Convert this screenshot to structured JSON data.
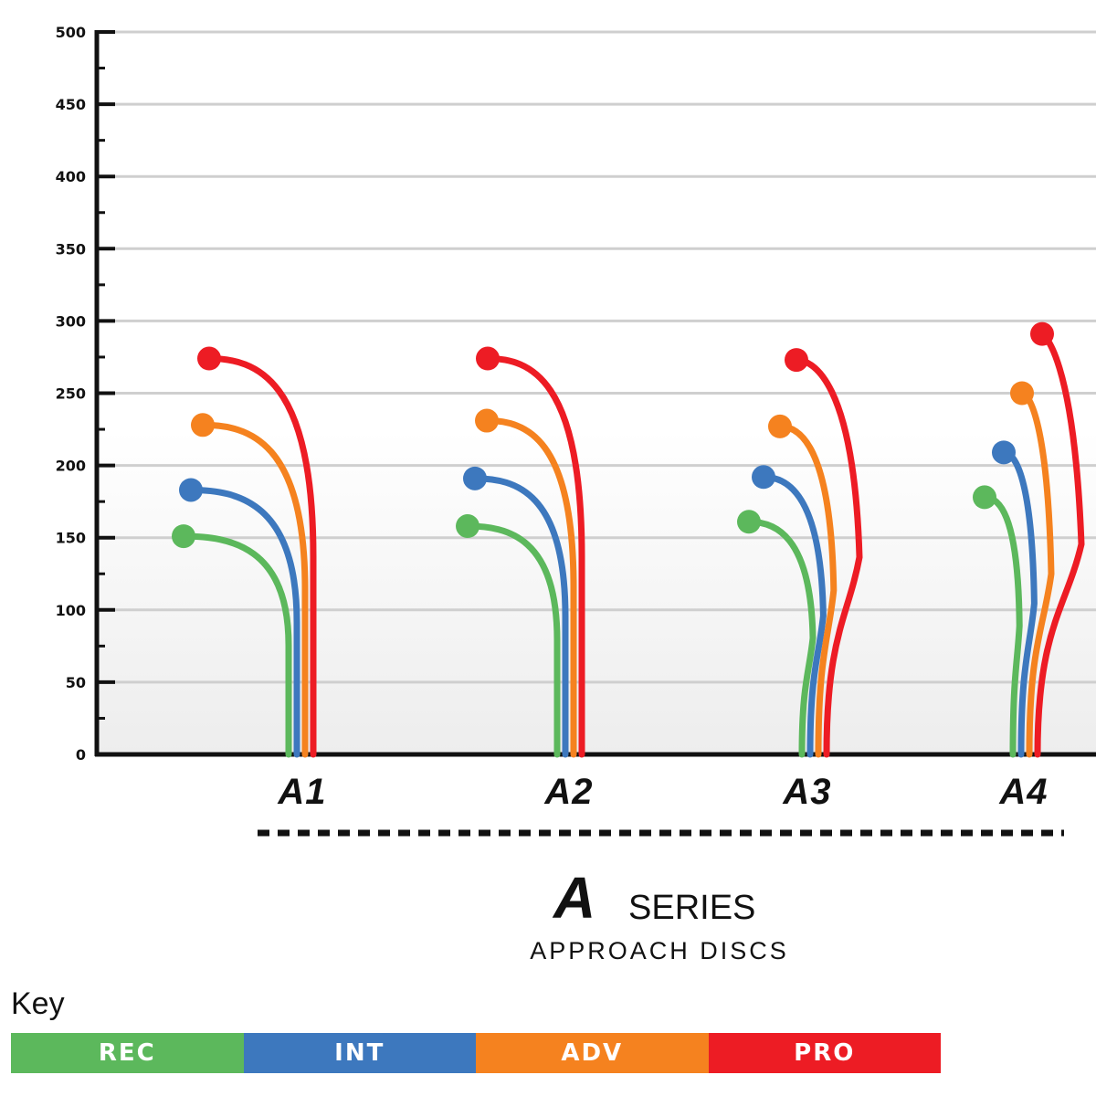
{
  "chart_data": {
    "type": "line",
    "ylim": [
      0,
      500
    ],
    "yticks": [
      "0",
      "50",
      "100",
      "150",
      "200",
      "250",
      "300",
      "350",
      "400",
      "450",
      "500"
    ],
    "grid": true,
    "categories": [
      "A1",
      "A2",
      "A3",
      "A4"
    ],
    "series": [
      {
        "name": "REC",
        "color": "#5cb85c",
        "values": [
          151,
          158,
          161,
          178
        ]
      },
      {
        "name": "INT",
        "color": "#3d78be",
        "values": [
          183,
          191,
          192,
          209
        ]
      },
      {
        "name": "ADV",
        "color": "#f5821f",
        "values": [
          228,
          231,
          227,
          250
        ]
      },
      {
        "name": "PRO",
        "color": "#ed1c24",
        "values": [
          274,
          274,
          273,
          291
        ]
      }
    ]
  },
  "series_title": {
    "logo": "A",
    "word": "SERIES",
    "subtitle": "APPROACH DISCS"
  },
  "key": {
    "title": "Key",
    "items": [
      {
        "label": "REC",
        "color": "#5cb85c"
      },
      {
        "label": "INT",
        "color": "#3d78be"
      },
      {
        "label": "ADV",
        "color": "#f5821f"
      },
      {
        "label": "PRO",
        "color": "#ed1c24"
      }
    ]
  }
}
